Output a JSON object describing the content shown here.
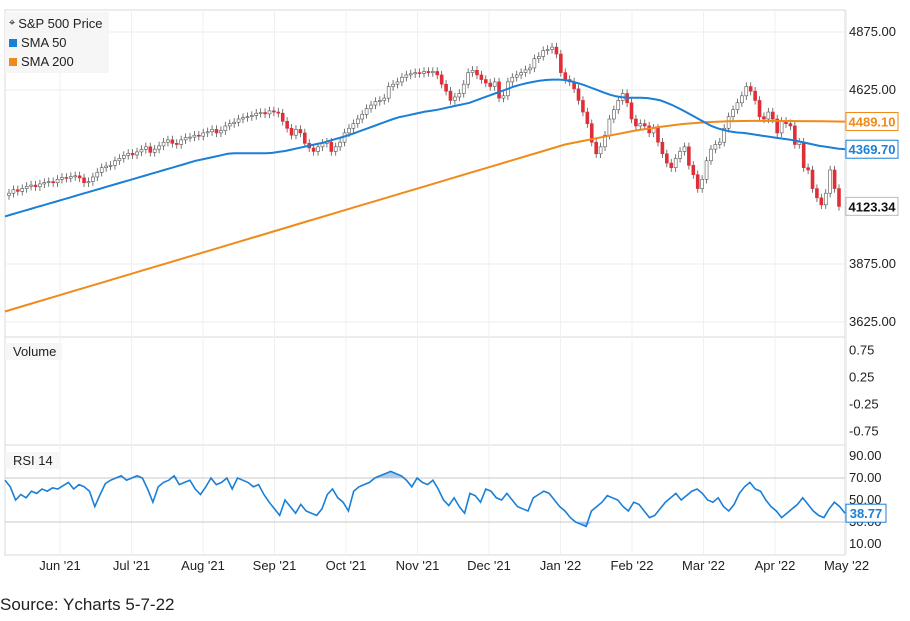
{
  "source_label": "Source: Ycharts 5-7-22",
  "legend": {
    "price_label": "S&P 500 Price",
    "sma50_label": "SMA 50",
    "sma200_label": "SMA 200"
  },
  "panes": {
    "volume_label": "Volume",
    "rsi_label": "RSI 14"
  },
  "colors": {
    "sma50": "#1a7fd6",
    "sma200": "#f08a18",
    "up_candle": "#ffffff",
    "down_candle": "#e02e36",
    "rsi_line": "#1a7fd6",
    "rsi_fill": "#8fb8e6"
  },
  "chart_data": [
    {
      "type": "candlestick",
      "title": "",
      "x_tick_labels": [
        "Jun '21",
        "Jul '21",
        "Aug '21",
        "Sep '21",
        "Oct '21",
        "Nov '21",
        "Dec '21",
        "Jan '22",
        "Feb '22",
        "Mar '22",
        "Apr '22",
        "May '22"
      ],
      "y_tick_labels": [
        "4875.00",
        "4625.00",
        "3875.00",
        "3625.00"
      ],
      "ylim": [
        3560,
        4970
      ],
      "last_value_labels": {
        "price": "4123.34",
        "sma50": "4369.70",
        "sma200": "4489.10"
      },
      "price_close": [
        4180,
        4195,
        4188,
        4200,
        4210,
        4215,
        4208,
        4220,
        4226,
        4230,
        4225,
        4240,
        4248,
        4245,
        4252,
        4255,
        4246,
        4225,
        4230,
        4250,
        4270,
        4290,
        4297,
        4300,
        4320,
        4330,
        4343,
        4352,
        4345,
        4358,
        4369,
        4380,
        4356,
        4370,
        4384,
        4400,
        4410,
        4395,
        4390,
        4410,
        4420,
        4422,
        4430,
        4426,
        4440,
        4445,
        4455,
        4440,
        4450,
        4470,
        4480,
        4486,
        4500,
        4506,
        4510,
        4515,
        4525,
        4528,
        4522,
        4535,
        4530,
        4525,
        4490,
        4460,
        4430,
        4455,
        4440,
        4395,
        4375,
        4360,
        4380,
        4395,
        4400,
        4360,
        4380,
        4400,
        4440,
        4460,
        4480,
        4500,
        4520,
        4545,
        4560,
        4575,
        4580,
        4590,
        4640,
        4650,
        4660,
        4680,
        4690,
        4695,
        4700,
        4697,
        4705,
        4700,
        4705,
        4690,
        4650,
        4620,
        4580,
        4595,
        4610,
        4650,
        4700,
        4710,
        4690,
        4670,
        4655,
        4640,
        4660,
        4590,
        4600,
        4660,
        4680,
        4690,
        4700,
        4712,
        4720,
        4760,
        4770,
        4795,
        4800,
        4810,
        4780,
        4700,
        4670,
        4660,
        4630,
        4580,
        4530,
        4480,
        4400,
        4350,
        4380,
        4430,
        4500,
        4540,
        4580,
        4610,
        4570,
        4500,
        4470,
        4480,
        4470,
        4440,
        4460,
        4400,
        4350,
        4310,
        4290,
        4330,
        4360,
        4380,
        4300,
        4260,
        4200,
        4240,
        4320,
        4370,
        4390,
        4400,
        4460,
        4510,
        4540,
        4570,
        4600,
        4640,
        4620,
        4580,
        4510,
        4500,
        4530,
        4500,
        4440,
        4490,
        4480,
        4470,
        4390,
        4400,
        4290,
        4280,
        4200,
        4160,
        4130,
        4180,
        4280,
        4200,
        4123
      ],
      "sma50": [
        4080,
        4088,
        4096,
        4104,
        4112,
        4120,
        4128,
        4136,
        4144,
        4152,
        4160,
        4168,
        4176,
        4184,
        4192,
        4200,
        4208,
        4216,
        4224,
        4232,
        4240,
        4248,
        4256,
        4264,
        4272,
        4280,
        4288,
        4296,
        4304,
        4312,
        4320,
        4326,
        4332,
        4338,
        4344,
        4350,
        4352,
        4352,
        4352,
        4352,
        4352,
        4352,
        4354,
        4358,
        4362,
        4368,
        4374,
        4380,
        4386,
        4392,
        4398,
        4406,
        4414,
        4422,
        4430,
        4440,
        4450,
        4460,
        4470,
        4480,
        4490,
        4500,
        4508,
        4514,
        4520,
        4526,
        4532,
        4536,
        4540,
        4546,
        4552,
        4558,
        4564,
        4570,
        4580,
        4590,
        4600,
        4610,
        4620,
        4630,
        4640,
        4648,
        4655,
        4660,
        4665,
        4668,
        4670,
        4670,
        4668,
        4662,
        4655,
        4646,
        4636,
        4626,
        4615,
        4605,
        4598,
        4594,
        4592,
        4592,
        4592,
        4590,
        4586,
        4580,
        4570,
        4558,
        4545,
        4530,
        4515,
        4500,
        4485,
        4470,
        4460,
        4452,
        4446,
        4442,
        4440,
        4436,
        4432,
        4428,
        4424,
        4420,
        4416,
        4412,
        4408,
        4402,
        4396,
        4390,
        4384,
        4380,
        4376,
        4372,
        4370
      ],
      "sma200": [
        3670,
        3700,
        3730,
        3760,
        3790,
        3820,
        3850,
        3880,
        3910,
        3940,
        3970,
        4000,
        4030,
        4060,
        4090,
        4120,
        4150,
        4180,
        4210,
        4240,
        4270,
        4300,
        4330,
        4360,
        4390,
        4410,
        4430,
        4450,
        4465,
        4478,
        4486,
        4490,
        4492,
        4492,
        4491,
        4490,
        4489
      ]
    },
    {
      "type": "line",
      "title": "",
      "series_label": "Volume",
      "y_tick_labels": [
        "0.75",
        "0.25",
        "-0.25",
        "-0.75"
      ],
      "ylim": [
        -1,
        1
      ],
      "values": []
    },
    {
      "type": "line",
      "title": "",
      "series_label": "RSI 14",
      "y_tick_labels": [
        "90.00",
        "70.00",
        "50.00",
        "30.00",
        "10.00"
      ],
      "ylim": [
        0,
        100
      ],
      "bands": [
        30,
        70
      ],
      "last_value_label": "38.77",
      "values": [
        68,
        62,
        50,
        55,
        52,
        58,
        56,
        60,
        58,
        61,
        60,
        63,
        66,
        60,
        64,
        62,
        58,
        44,
        55,
        65,
        68,
        70,
        72,
        68,
        70,
        72,
        70,
        60,
        48,
        62,
        66,
        68,
        72,
        64,
        66,
        68,
        60,
        55,
        62,
        70,
        64,
        66,
        70,
        60,
        70,
        68,
        66,
        62,
        64,
        55,
        48,
        42,
        36,
        50,
        44,
        38,
        46,
        40,
        38,
        36,
        42,
        55,
        60,
        52,
        48,
        40,
        58,
        62,
        64,
        66,
        70,
        72,
        74,
        76,
        74,
        72,
        68,
        62,
        70,
        66,
        64,
        68,
        60,
        50,
        45,
        52,
        44,
        38,
        56,
        54,
        48,
        60,
        58,
        52,
        50,
        56,
        50,
        44,
        42,
        40,
        52,
        55,
        58,
        56,
        50,
        44,
        40,
        34,
        30,
        28,
        26,
        40,
        44,
        48,
        54,
        52,
        50,
        44,
        40,
        48,
        46,
        40,
        34,
        36,
        42,
        48,
        52,
        56,
        50,
        54,
        58,
        60,
        56,
        50,
        48,
        52,
        44,
        40,
        46,
        56,
        62,
        66,
        60,
        58,
        50,
        44,
        40,
        34,
        38,
        42,
        46,
        52,
        46,
        40,
        36,
        34,
        42,
        48,
        44,
        38
      ]
    }
  ]
}
